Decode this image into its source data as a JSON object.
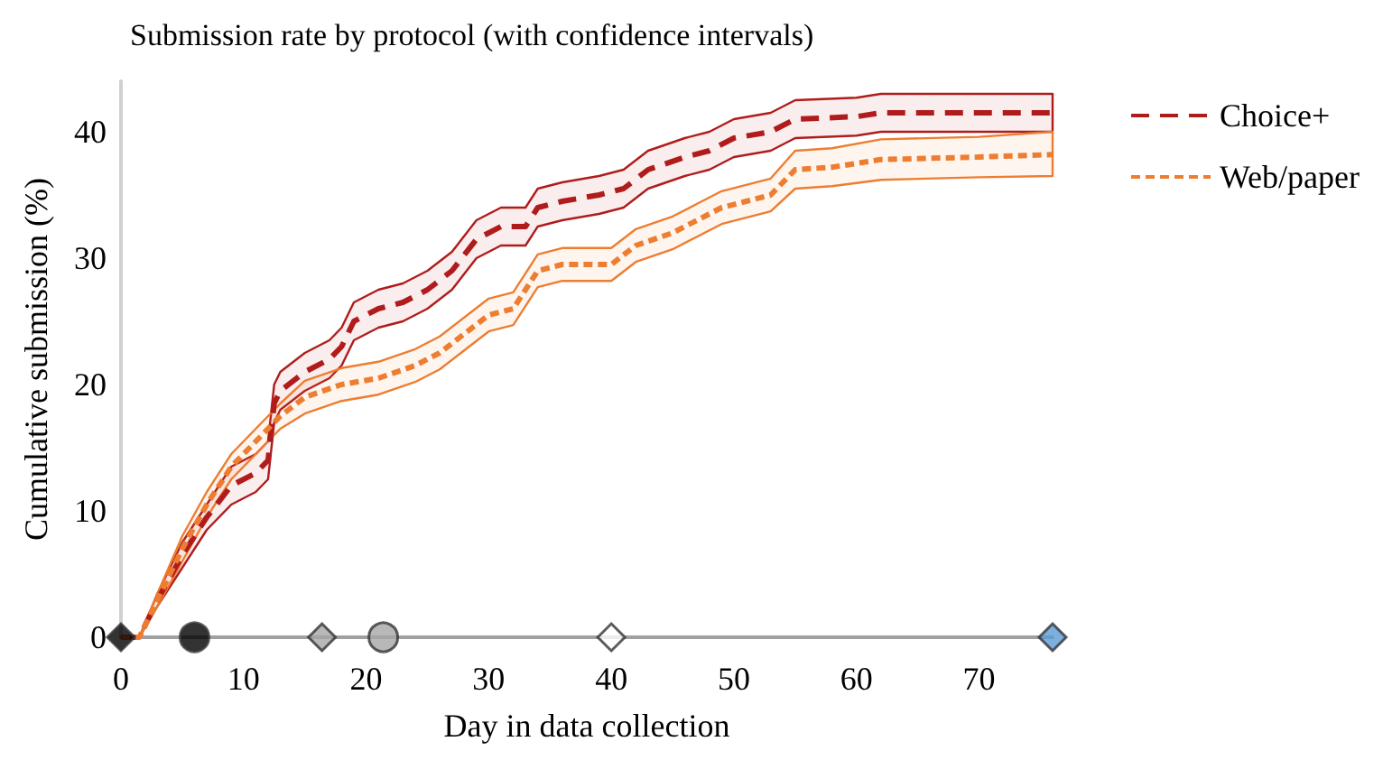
{
  "chart_data": {
    "type": "line",
    "title": "Submission rate by protocol (with confidence intervals)",
    "xlabel": "Day in data collection",
    "ylabel": "Cumulative submission (%)",
    "xlim": [
      0,
      76
    ],
    "xticks": [
      0,
      10,
      20,
      30,
      40,
      50,
      60,
      70
    ],
    "ylim": [
      0,
      44
    ],
    "yticks": [
      0,
      10,
      20,
      30,
      40
    ],
    "grid": false,
    "legend": "top right",
    "marker": "none",
    "series": [
      {
        "name": "Choice+",
        "color": "#b01c1c",
        "line_style": "dashed",
        "x": [
          0,
          1.5,
          3,
          5,
          7,
          9,
          11,
          12,
          12.5,
          13,
          15,
          17,
          18,
          19,
          21,
          23,
          25,
          27,
          29,
          31,
          33,
          34,
          36,
          39,
          41,
          43,
          46,
          48,
          50,
          53,
          55,
          60,
          62,
          76
        ],
        "values": [
          0,
          0,
          3,
          6.5,
          9.5,
          12,
          13,
          14,
          18.5,
          19.5,
          21,
          22,
          23,
          25,
          26,
          26.5,
          27.5,
          29,
          31.5,
          32.5,
          32.5,
          34,
          34.5,
          35,
          35.5,
          37,
          38,
          38.5,
          39.5,
          40,
          41,
          41.2,
          41.5,
          41.5
        ],
        "lower": [
          0,
          0,
          2.5,
          5.5,
          8.5,
          10.5,
          11.5,
          12.5,
          17,
          18,
          19.5,
          20.5,
          21.5,
          23.5,
          24.5,
          25,
          26,
          27.5,
          30,
          31,
          31,
          32.5,
          33,
          33.5,
          34,
          35.5,
          36.5,
          37,
          38,
          38.5,
          39.5,
          39.7,
          40,
          40
        ],
        "upper": [
          0,
          0,
          3.5,
          7.5,
          10.5,
          13.5,
          14.5,
          15.5,
          20,
          21,
          22.5,
          23.5,
          24.5,
          26.5,
          27.5,
          28,
          29,
          30.5,
          33,
          34,
          34,
          35.5,
          36,
          36.5,
          37,
          38.5,
          39.5,
          40,
          41,
          41.5,
          42.5,
          42.7,
          43,
          43
        ]
      },
      {
        "name": "Web/paper",
        "color": "#ed7d31",
        "line_style": "dotted",
        "x": [
          0,
          1.5,
          3,
          5,
          7,
          9,
          11,
          13,
          15,
          18,
          21,
          24,
          26,
          28,
          30,
          32,
          33,
          34,
          36,
          40,
          42,
          45,
          47,
          49,
          51,
          53,
          55,
          58,
          62,
          70,
          76
        ],
        "values": [
          0,
          0,
          3,
          7,
          10.5,
          13.5,
          15.5,
          17.5,
          19,
          20,
          20.5,
          21.5,
          22.5,
          24,
          25.5,
          26,
          27.5,
          29,
          29.5,
          29.5,
          31,
          32,
          33,
          34,
          34.5,
          35,
          37,
          37.2,
          37.8,
          38,
          38.2
        ],
        "lower": [
          0,
          0,
          2.5,
          6,
          9.5,
          12.5,
          14.5,
          16.5,
          17.7,
          18.7,
          19.2,
          20.2,
          21.2,
          22.7,
          24.2,
          24.7,
          26.2,
          27.7,
          28.2,
          28.2,
          29.7,
          30.7,
          31.7,
          32.7,
          33.2,
          33.7,
          35.5,
          35.7,
          36.2,
          36.4,
          36.5
        ],
        "upper": [
          0,
          0,
          3.5,
          8,
          11.5,
          14.5,
          16.5,
          18.5,
          20.3,
          21.3,
          21.8,
          22.8,
          23.8,
          25.3,
          26.8,
          27.3,
          28.8,
          30.3,
          30.8,
          30.8,
          32.3,
          33.3,
          34.3,
          35.3,
          35.8,
          36.3,
          38.5,
          38.7,
          39.4,
          39.6,
          40
        ]
      },
      {
        "type": "scatter",
        "marker": "diamond",
        "x": [
          0,
          16.4,
          40,
          76
        ],
        "values": [
          0,
          0,
          0,
          0
        ],
        "colors": [
          "#000000",
          "#a6a6a6",
          "#ffffff",
          "#5b9bd5"
        ]
      },
      {
        "type": "scatter",
        "marker": "circle",
        "x": [
          6,
          21.4
        ],
        "values": [
          0,
          0
        ],
        "colors": [
          "#000000",
          "#a6a6a6"
        ]
      }
    ]
  }
}
